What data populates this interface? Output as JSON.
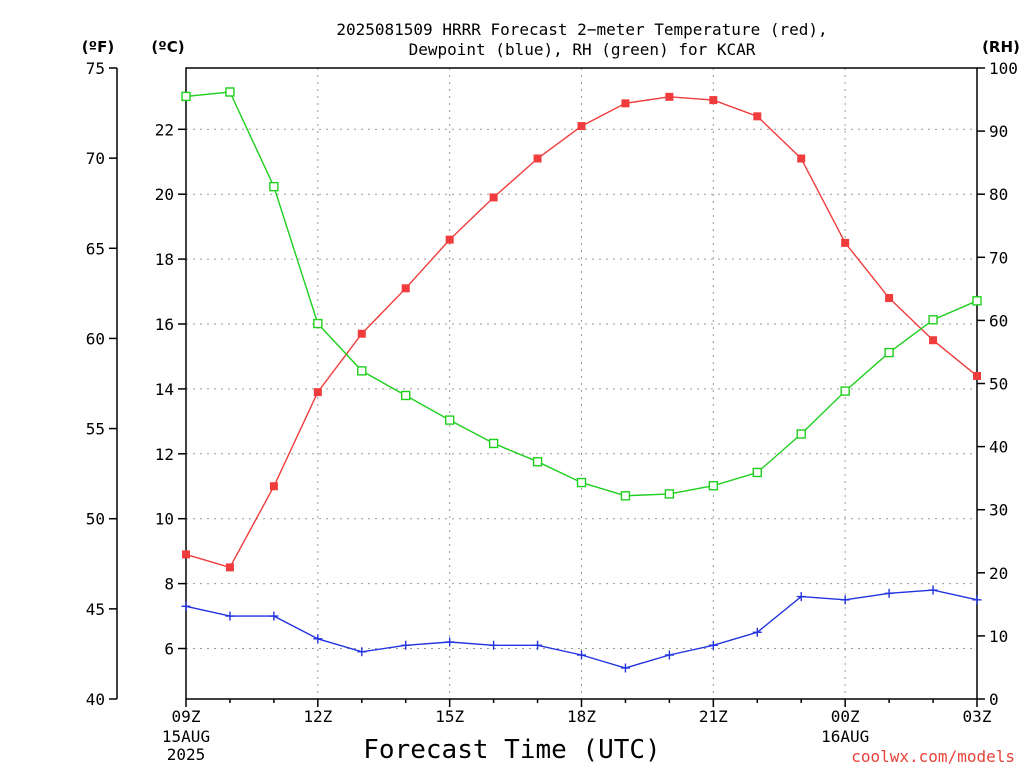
{
  "title": [
    "2025081509 HRRR Forecast 2−meter Temperature (red),",
    "Dewpoint (blue), RH (green) for KCAR"
  ],
  "credit": "coolwx.com/models",
  "colors": {
    "temperature": "#f03c3c",
    "dewpoint": "#2233e0",
    "rh": "#1fcf1f",
    "credit": "#e8433a",
    "grid": "#9a9a9a"
  },
  "chart_data": {
    "type": "line",
    "xlabel": "Forecast Time (UTC)",
    "x": [
      "09Z",
      "10Z",
      "11Z",
      "12Z",
      "13Z",
      "14Z",
      "15Z",
      "16Z",
      "17Z",
      "18Z",
      "19Z",
      "20Z",
      "21Z",
      "22Z",
      "23Z",
      "00Z",
      "01Z",
      "02Z",
      "03Z"
    ],
    "x_ticks": [
      {
        "label": "09Z",
        "sub": [
          "15AUG",
          "2025"
        ],
        "index": 0
      },
      {
        "label": "12Z",
        "sub": [],
        "index": 3
      },
      {
        "label": "15Z",
        "sub": [],
        "index": 6
      },
      {
        "label": "18Z",
        "sub": [],
        "index": 9
      },
      {
        "label": "21Z",
        "sub": [],
        "index": 12
      },
      {
        "label": "00Z",
        "sub": [
          "16AUG"
        ],
        "index": 15
      },
      {
        "label": "03Z",
        "sub": [],
        "index": 18
      }
    ],
    "axes": {
      "fahrenheit": {
        "label": "(ºF)",
        "range": [
          40,
          75
        ],
        "ticks": [
          40,
          45,
          50,
          55,
          60,
          65,
          70,
          75
        ]
      },
      "celsius": {
        "label": "(ºC)",
        "range": [
          4.444,
          23.889
        ],
        "ticks": [
          6,
          8,
          10,
          12,
          14,
          16,
          18,
          20,
          22
        ]
      },
      "rh": {
        "label": "(RH)",
        "range": [
          0,
          100
        ],
        "ticks": [
          0,
          10,
          20,
          30,
          40,
          50,
          60,
          70,
          80,
          90,
          100
        ]
      }
    },
    "grid": true,
    "series": [
      {
        "key": "temperature",
        "axis": "celsius",
        "marker": "filled-square",
        "values": [
          8.9,
          8.5,
          11.0,
          13.9,
          15.7,
          17.1,
          18.6,
          19.9,
          21.1,
          22.1,
          22.8,
          23.0,
          22.9,
          22.4,
          21.1,
          18.5,
          16.8,
          15.5,
          14.4
        ]
      },
      {
        "key": "dewpoint",
        "axis": "celsius",
        "marker": "plus",
        "values": [
          7.3,
          7.0,
          7.0,
          6.3,
          5.9,
          6.1,
          6.2,
          6.1,
          6.1,
          5.8,
          5.4,
          5.8,
          6.1,
          6.5,
          7.6,
          7.5,
          7.7,
          7.8,
          7.5
        ]
      },
      {
        "key": "rh",
        "axis": "rh",
        "marker": "open-square",
        "values": [
          95.5,
          96.2,
          81.2,
          59.5,
          52.0,
          48.1,
          44.2,
          40.5,
          37.6,
          34.3,
          32.2,
          32.5,
          33.8,
          35.9,
          42.0,
          48.8,
          54.9,
          60.1,
          63.1
        ]
      }
    ]
  }
}
